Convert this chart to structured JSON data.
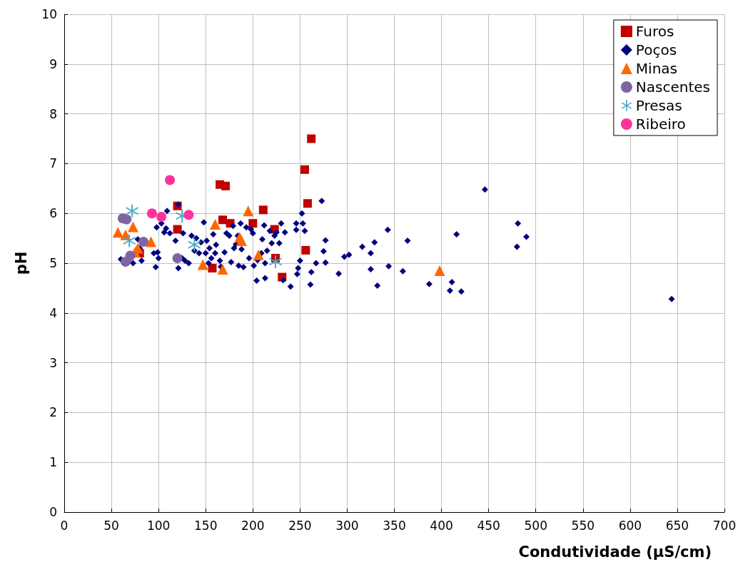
{
  "chart_data": {
    "type": "scatter",
    "xlabel": "Condutividade (µS/cm)",
    "ylabel": "pH",
    "xlim": [
      0,
      700
    ],
    "xticks": [
      0,
      50,
      100,
      150,
      200,
      250,
      300,
      350,
      400,
      450,
      500,
      550,
      600,
      650,
      700
    ],
    "ylim": [
      0,
      10
    ],
    "yticks": [
      0,
      1,
      2,
      3,
      4,
      5,
      6,
      7,
      8,
      9,
      10
    ],
    "grid": true,
    "legend": "top right",
    "series": [
      {
        "name": "Furos",
        "color": "#c00000",
        "marker": "square",
        "x": [
          80,
          120,
          120,
          165,
          171,
          157,
          168,
          176,
          200,
          211,
          223,
          224,
          231,
          255,
          256,
          258,
          262
        ],
        "values": [
          5.2,
          6.15,
          5.68,
          6.58,
          6.55,
          4.9,
          5.87,
          5.8,
          5.8,
          6.07,
          5.68,
          5.1,
          4.72,
          6.88,
          5.26,
          6.2,
          7.5
        ]
      },
      {
        "name": "Poços",
        "color": "#000080",
        "marker": "diamond",
        "x": [
          446,
          481,
          490,
          480,
          644,
          421,
          416,
          409,
          411,
          387,
          364,
          359,
          343,
          344,
          332,
          325,
          329,
          325,
          316,
          302,
          297,
          291,
          277,
          277,
          273,
          275,
          267,
          262,
          261,
          255,
          253,
          252,
          250,
          248,
          247,
          246,
          246,
          240,
          234,
          232,
          230,
          228,
          225,
          223,
          220,
          218,
          215,
          213,
          213,
          212,
          210,
          209,
          205,
          204,
          201,
          200,
          198,
          196,
          193,
          190,
          188,
          187,
          185,
          184,
          182,
          180,
          179,
          177,
          175,
          172,
          170,
          166,
          165,
          161,
          160,
          158,
          156,
          154,
          153,
          151,
          150,
          148,
          145,
          143,
          140,
          138,
          135,
          132,
          128,
          126,
          125,
          121,
          121,
          118,
          112,
          109,
          108,
          106,
          103,
          100,
          97,
          99,
          95,
          98,
          82,
          80,
          78,
          73,
          68,
          60
        ],
        "values": [
          6.48,
          5.8,
          5.53,
          5.33,
          4.28,
          4.43,
          5.58,
          4.45,
          4.62,
          4.58,
          5.45,
          4.84,
          5.67,
          4.94,
          4.55,
          5.2,
          5.42,
          4.88,
          5.33,
          5.17,
          5.13,
          4.79,
          5.46,
          5.01,
          6.25,
          5.24,
          5.0,
          4.82,
          4.57,
          5.65,
          5.8,
          6.0,
          5.05,
          4.9,
          4.78,
          5.8,
          5.67,
          4.53,
          5.62,
          4.66,
          5.8,
          5.4,
          5.62,
          5.55,
          5.4,
          5.65,
          5.25,
          5.0,
          4.7,
          5.76,
          5.48,
          5.2,
          5.06,
          4.65,
          4.95,
          5.6,
          5.68,
          5.1,
          5.72,
          4.92,
          5.28,
          5.8,
          4.95,
          5.55,
          5.38,
          5.3,
          5.75,
          5.02,
          5.55,
          5.6,
          5.22,
          4.93,
          5.05,
          5.37,
          5.2,
          5.58,
          5.1,
          5.3,
          5.0,
          5.45,
          5.2,
          5.82,
          5.42,
          5.2,
          5.5,
          5.25,
          5.55,
          5.0,
          5.05,
          5.6,
          5.1,
          6.18,
          4.9,
          5.45,
          5.6,
          6.05,
          5.7,
          5.62,
          5.8,
          5.1,
          4.92,
          5.22,
          5.2,
          5.72,
          5.05,
          5.3,
          5.48,
          5.0,
          5.05,
          5.08
        ]
      },
      {
        "name": "Minas",
        "color": "#ff6600",
        "marker": "triangle",
        "x": [
          57,
          65,
          73,
          75,
          78,
          92,
          147,
          160,
          168,
          186,
          188,
          195,
          206,
          398
        ],
        "values": [
          5.62,
          5.57,
          5.73,
          5.22,
          5.3,
          5.43,
          4.97,
          5.78,
          4.88,
          5.52,
          5.45,
          6.05,
          5.17,
          4.85
        ]
      },
      {
        "name": "Nascentes",
        "color": "#8064a2",
        "marker": "circle",
        "x": [
          62,
          66,
          65,
          70,
          84,
          120
        ],
        "values": [
          5.9,
          5.88,
          5.03,
          5.15,
          5.43,
          5.1
        ]
      },
      {
        "name": "Presas",
        "color": "#4bacc6",
        "marker": "cross",
        "x": [
          69,
          72,
          125,
          138,
          224
        ],
        "values": [
          5.45,
          6.05,
          5.95,
          5.37,
          5.03
        ]
      },
      {
        "name": "Ribeiro",
        "color": "#ff3399",
        "marker": "circle",
        "x": [
          93,
          103,
          112,
          132
        ],
        "values": [
          6.0,
          5.93,
          6.67,
          5.97
        ]
      }
    ]
  }
}
